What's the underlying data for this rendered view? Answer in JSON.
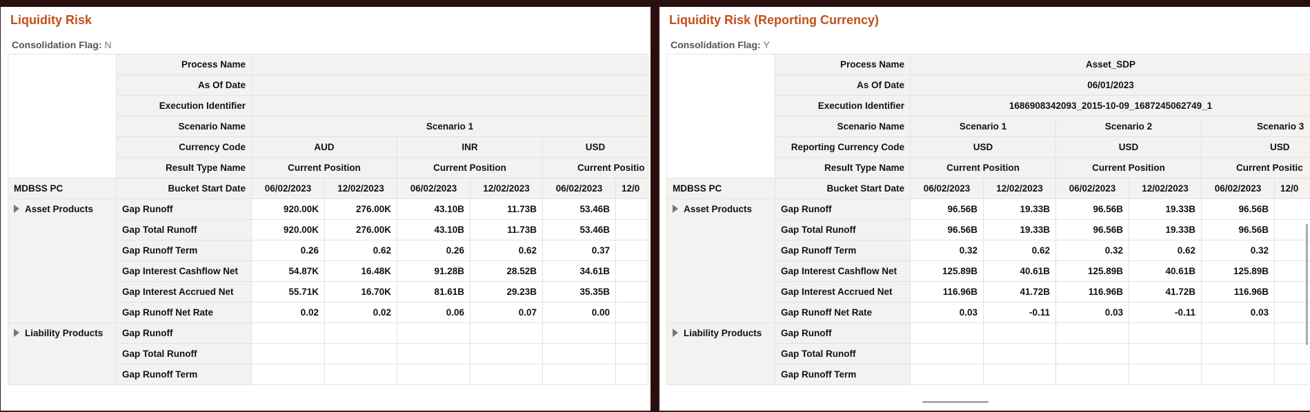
{
  "left": {
    "title": "Liquidity Risk",
    "flag_label": "Consolidation Flag:",
    "flag_value": "N",
    "header_labels": [
      "Process Name",
      "As Of Date",
      "Execution Identifier",
      "Scenario Name",
      "Currency Code",
      "Result Type Name",
      "Bucket Start Date"
    ],
    "process_name": "",
    "as_of_date": "",
    "execution_identifier": "",
    "scenario": "Scenario 1",
    "currencies": [
      "AUD",
      "INR",
      "USD"
    ],
    "result_types": [
      "Current Position",
      "Current Position",
      "Current Positio"
    ],
    "row_header": "MDBSS PC",
    "dates": [
      "06/02/2023",
      "12/02/2023",
      "06/02/2023",
      "12/02/2023",
      "06/02/2023",
      "12/0"
    ],
    "asset_group": "Asset Products",
    "liability_group": "Liability Products",
    "asset_rows": [
      {
        "measure": "Gap Runoff",
        "values": [
          "920.00K",
          "276.00K",
          "43.10B",
          "11.73B",
          "53.46B",
          ""
        ]
      },
      {
        "measure": "Gap Total Runoff",
        "values": [
          "920.00K",
          "276.00K",
          "43.10B",
          "11.73B",
          "53.46B",
          ""
        ]
      },
      {
        "measure": "Gap Runoff Term",
        "values": [
          "0.26",
          "0.62",
          "0.26",
          "0.62",
          "0.37",
          ""
        ]
      },
      {
        "measure": "Gap Interest Cashflow Net",
        "values": [
          "54.87K",
          "16.48K",
          "91.28B",
          "28.52B",
          "34.61B",
          ""
        ]
      },
      {
        "measure": "Gap Interest Accrued Net",
        "values": [
          "55.71K",
          "16.70K",
          "81.61B",
          "29.23B",
          "35.35B",
          ""
        ]
      },
      {
        "measure": "Gap Runoff Net Rate",
        "values": [
          "0.02",
          "0.02",
          "0.06",
          "0.07",
          "0.00",
          ""
        ]
      }
    ],
    "liability_rows": [
      {
        "measure": "Gap Runoff"
      },
      {
        "measure": "Gap Total Runoff"
      },
      {
        "measure": "Gap Runoff Term"
      }
    ]
  },
  "right": {
    "title": "Liquidity Risk (Reporting Currency)",
    "flag_label": "Consolidation Flag:",
    "flag_value": "Y",
    "header_labels": [
      "Process Name",
      "As Of Date",
      "Execution Identifier",
      "Scenario Name",
      "Reporting Currency Code",
      "Result Type Name",
      "Bucket Start Date"
    ],
    "process_name": "Asset_SDP",
    "as_of_date": "06/01/2023",
    "execution_identifier": "1686908342093_2015-10-09_1687245062749_1",
    "scenarios": [
      "Scenario 1",
      "Scenario 2",
      "Scenario 3"
    ],
    "currencies": [
      "USD",
      "USD",
      "USD"
    ],
    "result_types": [
      "Current Position",
      "Current Position",
      "Current Positic"
    ],
    "row_header": "MDBSS PC",
    "dates": [
      "06/02/2023",
      "12/02/2023",
      "06/02/2023",
      "12/02/2023",
      "06/02/2023",
      "12/0"
    ],
    "asset_group": "Asset Products",
    "liability_group": "Liability Products",
    "asset_rows": [
      {
        "measure": "Gap Runoff",
        "values": [
          "96.56B",
          "19.33B",
          "96.56B",
          "19.33B",
          "96.56B",
          ""
        ]
      },
      {
        "measure": "Gap Total Runoff",
        "values": [
          "96.56B",
          "19.33B",
          "96.56B",
          "19.33B",
          "96.56B",
          ""
        ]
      },
      {
        "measure": "Gap Runoff Term",
        "values": [
          "0.32",
          "0.62",
          "0.32",
          "0.62",
          "0.32",
          ""
        ]
      },
      {
        "measure": "Gap Interest Cashflow Net",
        "values": [
          "125.89B",
          "40.61B",
          "125.89B",
          "40.61B",
          "125.89B",
          ""
        ]
      },
      {
        "measure": "Gap Interest Accrued Net",
        "values": [
          "116.96B",
          "41.72B",
          "116.96B",
          "41.72B",
          "116.96B",
          ""
        ]
      },
      {
        "measure": "Gap Runoff Net Rate",
        "values": [
          "0.03",
          "-0.11",
          "0.03",
          "-0.11",
          "0.03",
          ""
        ]
      }
    ],
    "liability_rows": [
      {
        "measure": "Gap Runoff"
      },
      {
        "measure": "Gap Total Runoff"
      },
      {
        "measure": "Gap Runoff Term"
      }
    ]
  }
}
